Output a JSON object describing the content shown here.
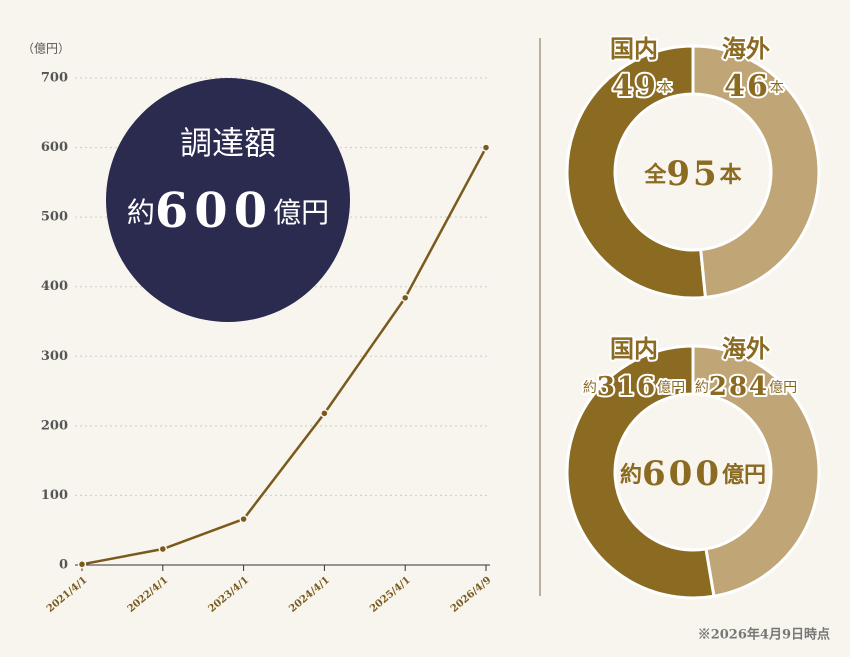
{
  "chart_data": [
    {
      "type": "line",
      "y_unit_label": "（億円）",
      "categories": [
        "2021/4/1",
        "2022/4/1",
        "2023/4/1",
        "2024/4/1",
        "2025/4/1",
        "2026/4/9"
      ],
      "values": [
        1,
        23,
        66,
        218,
        384,
        600
      ],
      "color": "#7a5a1c",
      "ylim": [
        0,
        700
      ],
      "yticks": [
        0,
        100,
        200,
        300,
        400,
        500,
        600,
        700
      ],
      "grid": true,
      "badge": {
        "title": "調達額",
        "prefix": "約",
        "value": 600,
        "unit": "億円",
        "color": "#2b2a4f"
      }
    },
    {
      "type": "pie",
      "categories": [
        "国内",
        "海外"
      ],
      "values": [
        49,
        46
      ],
      "unit": "本",
      "colors": [
        "#8b6a22",
        "#c0a677"
      ],
      "total_prefix": "全",
      "total": 95,
      "total_unit": "本"
    },
    {
      "type": "pie",
      "categories": [
        "国内",
        "海外"
      ],
      "values": [
        316,
        284
      ],
      "value_prefix": "約",
      "unit": "億円",
      "colors": [
        "#8b6a22",
        "#c0a677"
      ],
      "total_prefix": "約",
      "total": 600,
      "total_unit": "億円"
    }
  ],
  "footnote": "※2026年4月9日時点"
}
